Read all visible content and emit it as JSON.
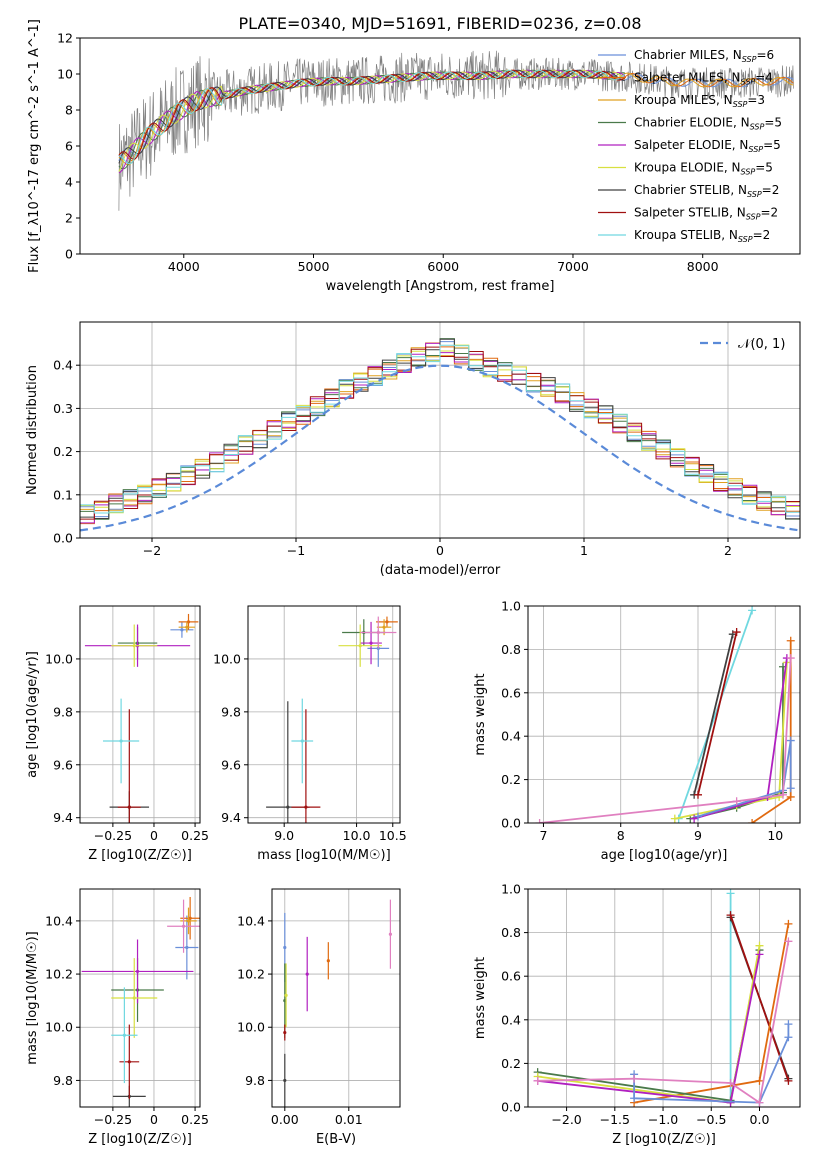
{
  "figure_title": "PLATE=0340, MJD=51691, FIBERID=0236, z=0.08",
  "colors": {
    "Chabrier MILES": "#6a8fd9",
    "Salpeter MILES": "#e06a10",
    "Kroupa MILES": "#e0a020",
    "Chabrier ELODIE": "#4a7a4a",
    "Salpeter ELODIE": "#b020c0",
    "Kroupa ELODIE": "#d8e040",
    "Chabrier STELIB": "#404040",
    "Salpeter STELIB": "#a01010",
    "Kroupa STELIB": "#70d8e0",
    "data": "#808080",
    "normal_curve": "#5a8ad8",
    "pink": "#e080c0"
  },
  "chart_data": [
    {
      "type": "line",
      "id": "spectrum",
      "xlabel": "wavelength [Angstrom, rest frame]",
      "ylabel": "Flux [f_λ10^-17 erg cm^-2 s^-1 A^-1]",
      "xlim": [
        3200,
        8750
      ],
      "ylim": [
        0,
        12
      ],
      "xticks": [
        4000,
        5000,
        6000,
        7000,
        8000
      ],
      "yticks": [
        0,
        2,
        4,
        6,
        8,
        10,
        12
      ],
      "legend_position": "right",
      "legend": [
        {
          "name": "Chabrier MILES",
          "n": "6"
        },
        {
          "name": "Salpeter MILES",
          "n": "4"
        },
        {
          "name": "Kroupa MILES",
          "n": "3"
        },
        {
          "name": "Chabrier ELODIE",
          "n": "5"
        },
        {
          "name": "Salpeter ELODIE",
          "n": "5"
        },
        {
          "name": "Kroupa ELODIE",
          "n": "5"
        },
        {
          "name": "Chabrier STELIB",
          "n": "2"
        },
        {
          "name": "Salpeter STELIB",
          "n": "2"
        },
        {
          "name": "Kroupa STELIB",
          "n": "2"
        }
      ],
      "model_continuum": [
        [
          3500,
          5.0
        ],
        [
          3600,
          5.6
        ],
        [
          3700,
          6.4
        ],
        [
          3800,
          7.0
        ],
        [
          3900,
          7.6
        ],
        [
          4000,
          8.1
        ],
        [
          4100,
          8.5
        ],
        [
          4200,
          8.7
        ],
        [
          4300,
          8.8
        ],
        [
          4500,
          9.1
        ],
        [
          4700,
          9.3
        ],
        [
          4900,
          9.5
        ],
        [
          5100,
          9.6
        ],
        [
          5300,
          9.6
        ],
        [
          5500,
          9.7
        ],
        [
          5700,
          9.8
        ],
        [
          5900,
          9.9
        ],
        [
          6100,
          9.9
        ],
        [
          6300,
          9.9
        ],
        [
          6500,
          10.0
        ],
        [
          6700,
          10.0
        ],
        [
          6900,
          10.0
        ],
        [
          7100,
          10.0
        ],
        [
          7300,
          9.9
        ],
        [
          7500,
          9.8
        ],
        [
          7700,
          9.6
        ],
        [
          7900,
          9.5
        ],
        [
          8100,
          9.5
        ],
        [
          8300,
          9.5
        ],
        [
          8500,
          9.6
        ],
        [
          8700,
          9.6
        ]
      ]
    },
    {
      "type": "histogram",
      "id": "residuals",
      "xlabel": "(data-model)/error",
      "ylabel": "Normed distribution",
      "xlim": [
        -2.5,
        2.5
      ],
      "ylim": [
        0,
        0.5
      ],
      "xticks": [
        -2,
        -1,
        0,
        1,
        2
      ],
      "yticks": [
        0,
        0.1,
        0.2,
        0.3,
        0.4
      ],
      "legend": [
        "𝒩(0, 1)"
      ],
      "bin_width": 0.1,
      "mean_heights": [
        0.02,
        0.025,
        0.03,
        0.035,
        0.045,
        0.055,
        0.065,
        0.08,
        0.09,
        0.1,
        0.115,
        0.13,
        0.145,
        0.16,
        0.175,
        0.195,
        0.215,
        0.23,
        0.25,
        0.27,
        0.285,
        0.305,
        0.325,
        0.345,
        0.36,
        0.375,
        0.39,
        0.405,
        0.42,
        0.43,
        0.44,
        0.425,
        0.41,
        0.395,
        0.385,
        0.375,
        0.36,
        0.35,
        0.335,
        0.315,
        0.3,
        0.285,
        0.265,
        0.245,
        0.225,
        0.205,
        0.185,
        0.165,
        0.15,
        0.13,
        0.115,
        0.1,
        0.085,
        0.075,
        0.065,
        0.055,
        0.045,
        0.04,
        0.035,
        0.03
      ]
    },
    {
      "type": "scatter",
      "id": "age_vs_Z",
      "xlabel": "Z [log10(Z/Z☉)]",
      "ylabel": "age [log10(age/yr)]",
      "xlim": [
        -0.45,
        0.28
      ],
      "ylim": [
        9.38,
        10.2
      ],
      "xticks": [
        -0.25,
        0.0,
        0.25
      ],
      "yticks": [
        9.4,
        9.6,
        9.8,
        10.0
      ],
      "points": [
        {
          "model": "Chabrier MILES",
          "x": 0.17,
          "y": 10.11,
          "xerr": 0.07,
          "yerr": 0.03
        },
        {
          "model": "Salpeter MILES",
          "x": 0.21,
          "y": 10.14,
          "xerr": 0.06,
          "yerr": 0.03
        },
        {
          "model": "Kroupa MILES",
          "x": 0.2,
          "y": 10.12,
          "xerr": 0.05,
          "yerr": 0.02
        },
        {
          "model": "Chabrier ELODIE",
          "x": -0.1,
          "y": 10.06,
          "xerr": 0.12,
          "yerr": 0.06
        },
        {
          "model": "Salpeter ELODIE",
          "x": -0.1,
          "y": 10.05,
          "xerr": 0.32,
          "yerr": 0.08
        },
        {
          "model": "Kroupa ELODIE",
          "x": -0.12,
          "y": 10.05,
          "xerr": 0.14,
          "yerr": 0.08
        },
        {
          "model": "Chabrier STELIB",
          "x": -0.15,
          "y": 9.44,
          "xerr": 0.12,
          "yerr": 0.06
        },
        {
          "model": "Salpeter STELIB",
          "x": -0.15,
          "y": 9.44,
          "xerr": 0.07,
          "yerr": 0.37
        },
        {
          "model": "Kroupa STELIB",
          "x": -0.2,
          "y": 9.69,
          "xerr": 0.11,
          "yerr": 0.16
        }
      ]
    },
    {
      "type": "scatter",
      "id": "age_vs_mass",
      "xlabel": "mass [log10(M/M☉)]",
      "ylabel": "",
      "xlim": [
        8.5,
        10.6
      ],
      "ylim": [
        9.38,
        10.2
      ],
      "xticks": [
        9.0,
        10.0,
        10.5
      ],
      "yticks": [
        9.4,
        9.6,
        9.8,
        10.0
      ],
      "points": [
        {
          "model": "Chabrier MILES",
          "x": 10.3,
          "y": 10.04,
          "xerr": 0.15,
          "yerr": 0.07
        },
        {
          "model": "Salpeter MILES",
          "x": 10.42,
          "y": 10.14,
          "xerr": 0.15,
          "yerr": 0.02
        },
        {
          "model": "Kroupa MILES",
          "x": 10.38,
          "y": 10.12,
          "xerr": 0.1,
          "yerr": 0.03
        },
        {
          "model": "Chabrier ELODIE",
          "x": 10.1,
          "y": 10.1,
          "xerr": 0.3,
          "yerr": 0.05
        },
        {
          "model": "Salpeter ELODIE",
          "x": 10.2,
          "y": 10.06,
          "xerr": 0.15,
          "yerr": 0.08
        },
        {
          "model": "Kroupa ELODIE",
          "x": 10.05,
          "y": 10.05,
          "xerr": 0.3,
          "yerr": 0.08
        },
        {
          "model": "Chabrier STELIB",
          "x": 9.05,
          "y": 9.44,
          "xerr": 0.3,
          "yerr": 0.4
        },
        {
          "model": "Salpeter STELIB",
          "x": 9.3,
          "y": 9.44,
          "xerr": 0.2,
          "yerr": 0.37
        },
        {
          "model": "Kroupa STELIB",
          "x": 9.25,
          "y": 9.69,
          "xerr": 0.15,
          "yerr": 0.16
        },
        {
          "model": "pink",
          "x": 10.3,
          "y": 10.1,
          "xerr": 0.25,
          "yerr": 0.06
        }
      ]
    },
    {
      "type": "line",
      "id": "massweight_vs_age",
      "xlabel": "age [log10(age/yr)]",
      "ylabel": "mass weight",
      "xlim": [
        6.8,
        10.32
      ],
      "ylim": [
        0,
        1.0
      ],
      "xticks": [
        7,
        8,
        9,
        10
      ],
      "yticks": [
        0.0,
        0.2,
        0.4,
        0.6,
        0.8,
        1.0
      ],
      "series": [
        {
          "model": "Kroupa STELIB",
          "x": [
            8.75,
            9.7
          ],
          "y": [
            0.02,
            0.98
          ]
        },
        {
          "model": "Chabrier STELIB",
          "x": [
            8.95,
            9.45
          ],
          "y": [
            0.13,
            0.87
          ]
        },
        {
          "model": "Salpeter STELIB",
          "x": [
            9.0,
            9.5
          ],
          "y": [
            0.13,
            0.88
          ]
        },
        {
          "model": "Salpeter MILES",
          "x": [
            9.7,
            10.2,
            10.2
          ],
          "y": [
            0.0,
            0.12,
            0.84
          ]
        },
        {
          "model": "Chabrier ELODIE",
          "x": [
            8.9,
            9.5,
            10.1,
            10.1
          ],
          "y": [
            0.02,
            0.07,
            0.14,
            0.72
          ]
        },
        {
          "model": "Kroupa ELODIE",
          "x": [
            8.7,
            9.5,
            10.05,
            10.15
          ],
          "y": [
            0.02,
            0.08,
            0.12,
            0.74
          ]
        },
        {
          "model": "Salpeter ELODIE",
          "x": [
            8.95,
            9.9,
            10.15
          ],
          "y": [
            0.02,
            0.12,
            0.76
          ]
        },
        {
          "model": "Chabrier MILES",
          "x": [
            9.0,
            10.1,
            10.2,
            10.2
          ],
          "y": [
            0.03,
            0.15,
            0.38,
            0.16
          ]
        },
        {
          "model": "pink",
          "x": [
            6.95,
            9.5,
            10.1,
            10.2
          ],
          "y": [
            0.0,
            0.1,
            0.13,
            0.76
          ]
        }
      ]
    },
    {
      "type": "scatter",
      "id": "mass_vs_Z",
      "xlabel": "Z [log10(Z/Z☉)]",
      "ylabel": "mass [log10(M/M☉)]",
      "xlim": [
        -0.45,
        0.28
      ],
      "ylim": [
        9.7,
        10.52
      ],
      "xticks": [
        -0.25,
        0.0,
        0.25
      ],
      "yticks": [
        9.8,
        10.0,
        10.2,
        10.4
      ],
      "points": [
        {
          "model": "Chabrier MILES",
          "x": 0.2,
          "y": 10.3,
          "xerr": 0.07,
          "yerr": 0.12
        },
        {
          "model": "Salpeter MILES",
          "x": 0.22,
          "y": 10.41,
          "xerr": 0.06,
          "yerr": 0.08
        },
        {
          "model": "Kroupa MILES",
          "x": 0.21,
          "y": 10.4,
          "xerr": 0.05,
          "yerr": 0.05
        },
        {
          "model": "Chabrier ELODIE",
          "x": -0.1,
          "y": 10.14,
          "xerr": 0.16,
          "yerr": 0.12
        },
        {
          "model": "Salpeter ELODIE",
          "x": -0.1,
          "y": 10.21,
          "xerr": 0.34,
          "yerr": 0.12
        },
        {
          "model": "Kroupa ELODIE",
          "x": -0.12,
          "y": 10.11,
          "xerr": 0.14,
          "yerr": 0.15
        },
        {
          "model": "Chabrier STELIB",
          "x": -0.15,
          "y": 9.74,
          "xerr": 0.1,
          "yerr": 0.04
        },
        {
          "model": "Salpeter STELIB",
          "x": -0.15,
          "y": 9.87,
          "xerr": 0.06,
          "yerr": 0.14
        },
        {
          "model": "Kroupa STELIB",
          "x": -0.18,
          "y": 9.97,
          "xerr": 0.08,
          "yerr": 0.18
        },
        {
          "model": "pink",
          "x": 0.18,
          "y": 10.38,
          "xerr": 0.1,
          "yerr": 0.1
        }
      ]
    },
    {
      "type": "scatter",
      "id": "mass_vs_EBV",
      "xlabel": "E(B-V)",
      "ylabel": "",
      "xlim": [
        -0.002,
        0.018
      ],
      "ylim": [
        9.7,
        10.52
      ],
      "xticks": [
        0.0,
        0.01
      ],
      "yticks": [
        9.8,
        10.0,
        10.2,
        10.4
      ],
      "points": [
        {
          "model": "Chabrier MILES",
          "x": 0.0,
          "y": 10.3,
          "xerr": 0,
          "yerr": 0.13
        },
        {
          "model": "Salpeter MILES",
          "x": 0.0068,
          "y": 10.25,
          "xerr": 0,
          "yerr": 0.07
        },
        {
          "model": "Chabrier ELODIE",
          "x": 0.0,
          "y": 10.1,
          "xerr": 0,
          "yerr": 0.14
        },
        {
          "model": "Salpeter ELODIE",
          "x": 0.0035,
          "y": 10.2,
          "xerr": 0,
          "yerr": 0.14
        },
        {
          "model": "Kroupa ELODIE",
          "x": 0.0002,
          "y": 10.12,
          "xerr": 0,
          "yerr": 0.12
        },
        {
          "model": "Chabrier STELIB",
          "x": 0.0,
          "y": 9.8,
          "xerr": 0,
          "yerr": 0.1
        },
        {
          "model": "Salpeter STELIB",
          "x": 0.0,
          "y": 9.98,
          "xerr": 0,
          "yerr": 0.03
        },
        {
          "model": "pink",
          "x": 0.0165,
          "y": 10.35,
          "xerr": 0,
          "yerr": 0.13
        }
      ]
    },
    {
      "type": "line",
      "id": "massweight_vs_Z",
      "xlabel": "Z [log10(Z/Z☉)]",
      "ylabel": "mass weight",
      "xlim": [
        -2.4,
        0.42
      ],
      "ylim": [
        0,
        1.0
      ],
      "xticks": [
        -2.0,
        -1.5,
        -1.0,
        -0.5,
        0.0
      ],
      "yticks": [
        0.0,
        0.2,
        0.4,
        0.6,
        0.8,
        1.0
      ],
      "series": [
        {
          "model": "Kroupa STELIB",
          "x": [
            -0.3,
            -0.3
          ],
          "y": [
            0.02,
            0.98
          ]
        },
        {
          "model": "Chabrier STELIB",
          "x": [
            -0.3,
            0.3
          ],
          "y": [
            0.87,
            0.13
          ]
        },
        {
          "model": "Salpeter STELIB",
          "x": [
            -0.3,
            0.3
          ],
          "y": [
            0.88,
            0.12
          ]
        },
        {
          "model": "Salpeter MILES",
          "x": [
            -1.3,
            0.0,
            0.3
          ],
          "y": [
            0.02,
            0.12,
            0.84
          ]
        },
        {
          "model": "Chabrier ELODIE",
          "x": [
            -2.3,
            -0.3,
            0.0
          ],
          "y": [
            0.16,
            0.03,
            0.72
          ]
        },
        {
          "model": "Kroupa ELODIE",
          "x": [
            -2.3,
            -0.3,
            0.0
          ],
          "y": [
            0.14,
            0.02,
            0.74
          ]
        },
        {
          "model": "Salpeter ELODIE",
          "x": [
            -2.3,
            -0.3,
            0.0
          ],
          "y": [
            0.12,
            0.02,
            0.7
          ]
        },
        {
          "model": "Chabrier MILES",
          "x": [
            -1.3,
            -1.3,
            0.0,
            0.3,
            0.3
          ],
          "y": [
            0.15,
            0.04,
            0.02,
            0.32,
            0.38
          ]
        },
        {
          "model": "pink",
          "x": [
            -2.3,
            -1.3,
            -0.3,
            0.0,
            0.3
          ],
          "y": [
            0.12,
            0.13,
            0.11,
            0.02,
            0.76
          ]
        }
      ]
    }
  ]
}
